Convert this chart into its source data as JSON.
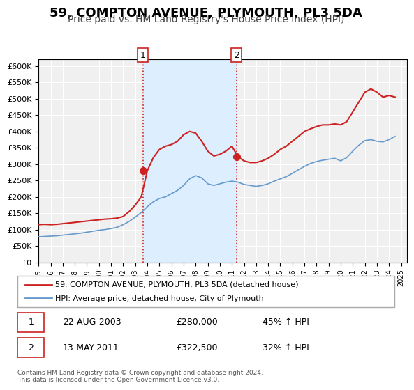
{
  "title": "59, COMPTON AVENUE, PLYMOUTH, PL3 5DA",
  "subtitle": "Price paid vs. HM Land Registry's House Price Index (HPI)",
  "title_fontsize": 13,
  "subtitle_fontsize": 10,
  "xlabel": "",
  "ylabel": "",
  "ylim": [
    0,
    620000
  ],
  "xlim_start": 1995.0,
  "xlim_end": 2025.5,
  "ytick_values": [
    0,
    50000,
    100000,
    150000,
    200000,
    250000,
    300000,
    350000,
    400000,
    450000,
    500000,
    550000,
    600000
  ],
  "ytick_labels": [
    "£0",
    "£50K",
    "£100K",
    "£150K",
    "£200K",
    "£250K",
    "£300K",
    "£350K",
    "£400K",
    "£450K",
    "£500K",
    "£550K",
    "£600K"
  ],
  "xtick_years": [
    1995,
    1996,
    1997,
    1998,
    1999,
    2000,
    2001,
    2002,
    2003,
    2004,
    2005,
    2006,
    2007,
    2008,
    2009,
    2010,
    2011,
    2012,
    2013,
    2014,
    2015,
    2016,
    2017,
    2018,
    2019,
    2020,
    2021,
    2022,
    2023,
    2024,
    2025
  ],
  "hpi_color": "#6699cc",
  "price_color": "#cc2222",
  "shaded_color": "#ddeeff",
  "marker_color": "#cc2222",
  "vline_color": "#cc2222",
  "vline1_x": 2003.64,
  "vline2_x": 2011.37,
  "marker1_x": 2003.64,
  "marker1_y": 280000,
  "marker2_x": 2011.37,
  "marker2_y": 322500,
  "legend_label1": "59, COMPTON AVENUE, PLYMOUTH, PL3 5DA (detached house)",
  "legend_label2": "HPI: Average price, detached house, City of Plymouth",
  "annot1_label": "1",
  "annot2_label": "2",
  "annot1_date": "22-AUG-2003",
  "annot1_price": "£280,000",
  "annot1_hpi": "45% ↑ HPI",
  "annot2_date": "13-MAY-2011",
  "annot2_price": "£322,500",
  "annot2_hpi": "32% ↑ HPI",
  "footnote": "Contains HM Land Registry data © Crown copyright and database right 2024.\nThis data is licensed under the Open Government Licence v3.0.",
  "background_color": "#ffffff",
  "plot_bg_color": "#f0f0f0"
}
